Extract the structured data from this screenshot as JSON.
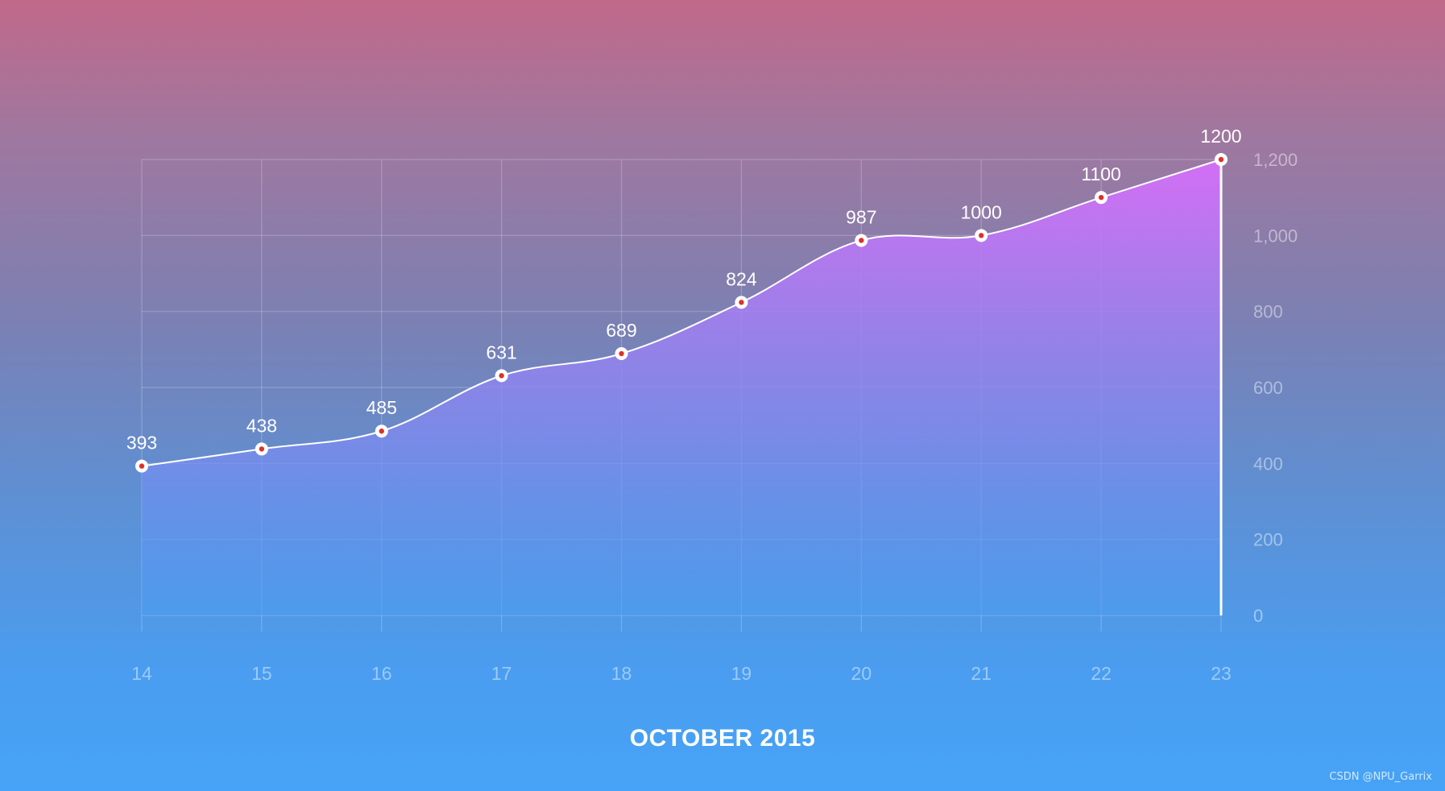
{
  "chart_data": {
    "type": "area",
    "categories": [
      "14",
      "15",
      "16",
      "17",
      "18",
      "19",
      "20",
      "21",
      "22",
      "23"
    ],
    "values": [
      393,
      438,
      485,
      631,
      689,
      824,
      987,
      1000,
      1100,
      1200
    ],
    "data_labels": [
      "393",
      "438",
      "485",
      "631",
      "689",
      "824",
      "987",
      "1000",
      "1100",
      "1200"
    ],
    "xlabel": "OCTOBER 2015",
    "ylabel": "",
    "ylim": [
      0,
      1200
    ],
    "yticks": [
      0,
      200,
      400,
      600,
      800,
      1000,
      1200
    ],
    "ytick_labels": [
      "0",
      "200",
      "400",
      "600",
      "800",
      "1,000",
      "1,200"
    ],
    "y_axis_position": "right",
    "grid": true,
    "colors": {
      "line": "#ffffff",
      "marker_center": "#e0302b",
      "fill_top": "#d36ff5",
      "fill_bottom": "#4a9cf0",
      "grid": "rgba(255,255,255,0.22)",
      "tick_text": "rgba(255,255,255,0.45)"
    }
  },
  "watermark": "CSDN @NPU_Garrix"
}
